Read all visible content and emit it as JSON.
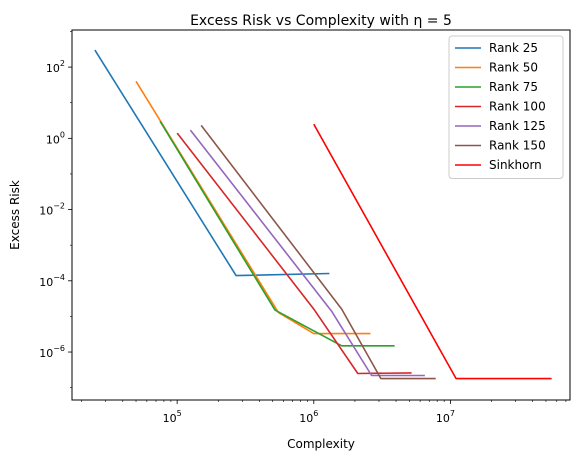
{
  "chart_data": {
    "type": "line",
    "title": "Excess Risk vs Complexity with η = 5",
    "xlabel": "Complexity",
    "ylabel": "Excess Risk",
    "xscale": "log",
    "yscale": "log",
    "xlim": [
      17000,
      75000000
    ],
    "ylim": [
      4.5e-08,
      1100
    ],
    "grid": false,
    "legend_position": "upper right",
    "x_ticks": [
      {
        "value": 100000,
        "base": "10",
        "exp": "5"
      },
      {
        "value": 1000000,
        "base": "10",
        "exp": "6"
      },
      {
        "value": 10000000,
        "base": "10",
        "exp": "7"
      }
    ],
    "y_ticks": [
      {
        "value": 1e-06,
        "base": "10",
        "exp": "−6"
      },
      {
        "value": 0.0001,
        "base": "10",
        "exp": "−4"
      },
      {
        "value": 0.01,
        "base": "10",
        "exp": "−2"
      },
      {
        "value": 1,
        "base": "10",
        "exp": "0"
      },
      {
        "value": 100,
        "base": "10",
        "exp": "2"
      }
    ],
    "series": [
      {
        "name": "Rank 25",
        "color": "#1f77b4",
        "points": [
          [
            25000,
            300
          ],
          [
            270000,
            0.00014
          ],
          [
            1300000,
            0.00016
          ]
        ]
      },
      {
        "name": "Rank 50",
        "color": "#ff7f0e",
        "points": [
          [
            50000,
            40
          ],
          [
            550000,
            1.3e-05
          ],
          [
            1000000,
            3.3e-06
          ],
          [
            2600000,
            3.3e-06
          ]
        ]
      },
      {
        "name": "Rank 75",
        "color": "#2ca02c",
        "points": [
          [
            75000,
            3
          ],
          [
            520000,
            1.5e-05
          ],
          [
            1600000,
            1.5e-06
          ],
          [
            3900000,
            1.5e-06
          ]
        ]
      },
      {
        "name": "Rank 100",
        "color": "#d62728",
        "points": [
          [
            100000,
            1.4
          ],
          [
            1000000,
            1.6e-05
          ],
          [
            2100000,
            2.5e-07
          ],
          [
            5200000,
            2.6e-07
          ]
        ]
      },
      {
        "name": "Rank 125",
        "color": "#9467bd",
        "points": [
          [
            125000,
            1.7
          ],
          [
            1350000,
            1.4e-05
          ],
          [
            2650000,
            2.2e-07
          ],
          [
            6500000,
            2.2e-07
          ]
        ]
      },
      {
        "name": "Rank 150",
        "color": "#8c564b",
        "points": [
          [
            150000,
            2.3
          ],
          [
            1600000,
            1.6e-05
          ],
          [
            3100000,
            1.8e-07
          ],
          [
            7800000,
            1.8e-07
          ]
        ]
      },
      {
        "name": "Sinkhorn",
        "color": "#ff0000",
        "points": [
          [
            1000000,
            2.5
          ],
          [
            11000000,
            1.8e-07
          ],
          [
            55000000,
            1.8e-07
          ]
        ]
      }
    ]
  }
}
